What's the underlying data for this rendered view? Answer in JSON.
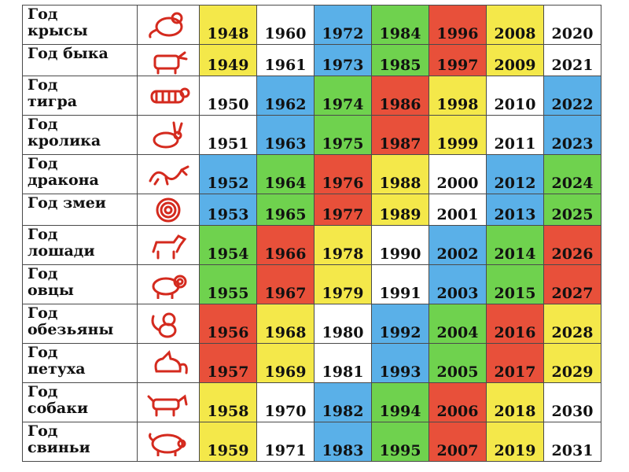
{
  "colors": {
    "yellow": "#f4e84a",
    "white": "#ffffff",
    "blue": "#5ab0e8",
    "green": "#6fd24e",
    "red": "#e8503a",
    "icon_red": "#d42a1e"
  },
  "rows": [
    {
      "name": "Год\nкрысы",
      "icon": "rat-icon",
      "years": [
        "1948",
        "1960",
        "1972",
        "1984",
        "1996",
        "2008",
        "2020"
      ],
      "colors": [
        "yellow",
        "white",
        "blue",
        "green",
        "red",
        "yellow",
        "white"
      ]
    },
    {
      "name": "Год быка",
      "icon": "ox-icon",
      "years": [
        "1949",
        "1961",
        "1973",
        "1985",
        "1997",
        "2009",
        "2021"
      ],
      "colors": [
        "yellow",
        "white",
        "blue",
        "green",
        "red",
        "yellow",
        "white"
      ]
    },
    {
      "name": "Год\nтигра",
      "icon": "tiger-icon",
      "years": [
        "1950",
        "1962",
        "1974",
        "1986",
        "1998",
        "2010",
        "2022"
      ],
      "colors": [
        "white",
        "blue",
        "green",
        "red",
        "yellow",
        "white",
        "blue"
      ]
    },
    {
      "name": "Год\nкролика",
      "icon": "rabbit-icon",
      "years": [
        "1951",
        "1963",
        "1975",
        "1987",
        "1999",
        "2011",
        "2023"
      ],
      "colors": [
        "white",
        "blue",
        "green",
        "red",
        "yellow",
        "white",
        "blue"
      ]
    },
    {
      "name": "Год\nдракона",
      "icon": "dragon-icon",
      "years": [
        "1952",
        "1964",
        "1976",
        "1988",
        "2000",
        "2012",
        "2024"
      ],
      "colors": [
        "blue",
        "green",
        "red",
        "yellow",
        "white",
        "blue",
        "green"
      ]
    },
    {
      "name": "Год змеи",
      "icon": "snake-icon",
      "years": [
        "1953",
        "1965",
        "1977",
        "1989",
        "2001",
        "2013",
        "2025"
      ],
      "colors": [
        "blue",
        "green",
        "red",
        "yellow",
        "white",
        "blue",
        "green"
      ]
    },
    {
      "name": "Год\nлошади",
      "icon": "horse-icon",
      "years": [
        "1954",
        "1966",
        "1978",
        "1990",
        "2002",
        "2014",
        "2026"
      ],
      "colors": [
        "green",
        "red",
        "yellow",
        "white",
        "blue",
        "green",
        "red"
      ]
    },
    {
      "name": "Год\nовцы",
      "icon": "sheep-icon",
      "years": [
        "1955",
        "1967",
        "1979",
        "1991",
        "2003",
        "2015",
        "2027"
      ],
      "colors": [
        "green",
        "red",
        "yellow",
        "white",
        "blue",
        "green",
        "red"
      ]
    },
    {
      "name": "Год\nобезьяны",
      "icon": "monkey-icon",
      "years": [
        "1956",
        "1968",
        "1980",
        "1992",
        "2004",
        "2016",
        "2028"
      ],
      "colors": [
        "red",
        "yellow",
        "white",
        "blue",
        "green",
        "red",
        "yellow"
      ]
    },
    {
      "name": "Год\nпетуха",
      "icon": "rooster-icon",
      "years": [
        "1957",
        "1969",
        "1981",
        "1993",
        "2005",
        "2017",
        "2029"
      ],
      "colors": [
        "red",
        "yellow",
        "white",
        "blue",
        "green",
        "red",
        "yellow"
      ]
    },
    {
      "name": "Год\nсобаки",
      "icon": "dog-icon",
      "years": [
        "1958",
        "1970",
        "1982",
        "1994",
        "2006",
        "2018",
        "2030"
      ],
      "colors": [
        "yellow",
        "white",
        "blue",
        "green",
        "red",
        "yellow",
        "white"
      ]
    },
    {
      "name": "Год\nсвиньи",
      "icon": "pig-icon",
      "years": [
        "1959",
        "1971",
        "1983",
        "1995",
        "2007",
        "2019",
        "2031"
      ],
      "colors": [
        "yellow",
        "white",
        "blue",
        "green",
        "red",
        "yellow",
        "white"
      ]
    }
  ]
}
